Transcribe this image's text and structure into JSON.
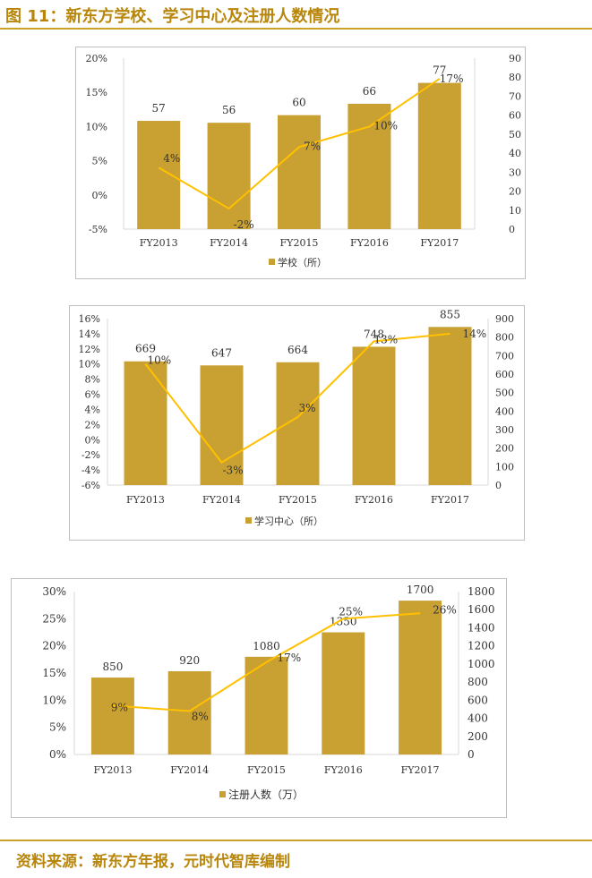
{
  "header": {
    "title": "图 11：新东方学校、学习中心及注册人数情况"
  },
  "footer": {
    "source": "资料来源：新东方年报，元时代智库编制"
  },
  "colors": {
    "bar": "#C9A032",
    "line": "#FFC000",
    "accent": "#B8860B"
  },
  "chart_data": [
    {
      "type": "bar",
      "categories": [
        "FY2013",
        "FY2014",
        "FY2015",
        "FY2016",
        "FY2017"
      ],
      "series": [
        {
          "name": "学校（所）",
          "kind": "bar",
          "axis": "right",
          "values": [
            57,
            56,
            60,
            66,
            77
          ],
          "labels": [
            "57",
            "56",
            "60",
            "66",
            "77"
          ]
        },
        {
          "name": "growth",
          "kind": "line",
          "axis": "left",
          "values": [
            4,
            -2,
            7,
            10,
            17
          ],
          "labels": [
            "4%",
            "-2%",
            "7%",
            "10%",
            "17%"
          ]
        }
      ],
      "left_axis": {
        "ticks": [
          "-5%",
          "0%",
          "5%",
          "10%",
          "15%",
          "20%"
        ],
        "range": [
          -5,
          20
        ]
      },
      "right_axis": {
        "ticks": [
          "0",
          "10",
          "20",
          "30",
          "40",
          "50",
          "60",
          "70",
          "80",
          "90"
        ],
        "range": [
          0,
          90
        ]
      },
      "legend": "学校（所）"
    },
    {
      "type": "bar",
      "categories": [
        "FY2013",
        "FY2014",
        "FY2015",
        "FY2016",
        "FY2017"
      ],
      "series": [
        {
          "name": "学习中心（所）",
          "kind": "bar",
          "axis": "right",
          "values": [
            669,
            647,
            664,
            748,
            855
          ],
          "labels": [
            "669",
            "647",
            "664",
            "748",
            "855"
          ]
        },
        {
          "name": "growth",
          "kind": "line",
          "axis": "left",
          "values": [
            10,
            -3,
            3,
            13,
            14
          ],
          "labels": [
            "10%",
            "-3%",
            "3%",
            "13%",
            "14%"
          ]
        }
      ],
      "left_axis": {
        "ticks": [
          "-6%",
          "-4%",
          "-2%",
          "0%",
          "2%",
          "4%",
          "6%",
          "8%",
          "10%",
          "12%",
          "14%",
          "16%"
        ],
        "range": [
          -6,
          16
        ]
      },
      "right_axis": {
        "ticks": [
          "0",
          "100",
          "200",
          "300",
          "400",
          "500",
          "600",
          "700",
          "800",
          "900"
        ],
        "range": [
          0,
          900
        ]
      },
      "legend": "学习中心（所）"
    },
    {
      "type": "bar",
      "categories": [
        "FY2013",
        "FY2014",
        "FY2015",
        "FY2016",
        "FY2017"
      ],
      "series": [
        {
          "name": "注册人数（万）",
          "kind": "bar",
          "axis": "right",
          "values": [
            850,
            920,
            1080,
            1350,
            1700
          ],
          "labels": [
            "850",
            "920",
            "1080",
            "1350",
            "1700"
          ]
        },
        {
          "name": "growth",
          "kind": "line",
          "axis": "left",
          "values": [
            9,
            8,
            17,
            25,
            26
          ],
          "labels": [
            "9%",
            "8%",
            "17%",
            "25%",
            "26%"
          ]
        }
      ],
      "left_axis": {
        "ticks": [
          "0%",
          "5%",
          "10%",
          "15%",
          "20%",
          "25%",
          "30%"
        ],
        "range": [
          0,
          30
        ]
      },
      "right_axis": {
        "ticks": [
          "0",
          "200",
          "400",
          "600",
          "800",
          "1000",
          "1200",
          "1400",
          "1600",
          "1800"
        ],
        "range": [
          0,
          1800
        ]
      },
      "legend": "注册人数（万）"
    }
  ]
}
